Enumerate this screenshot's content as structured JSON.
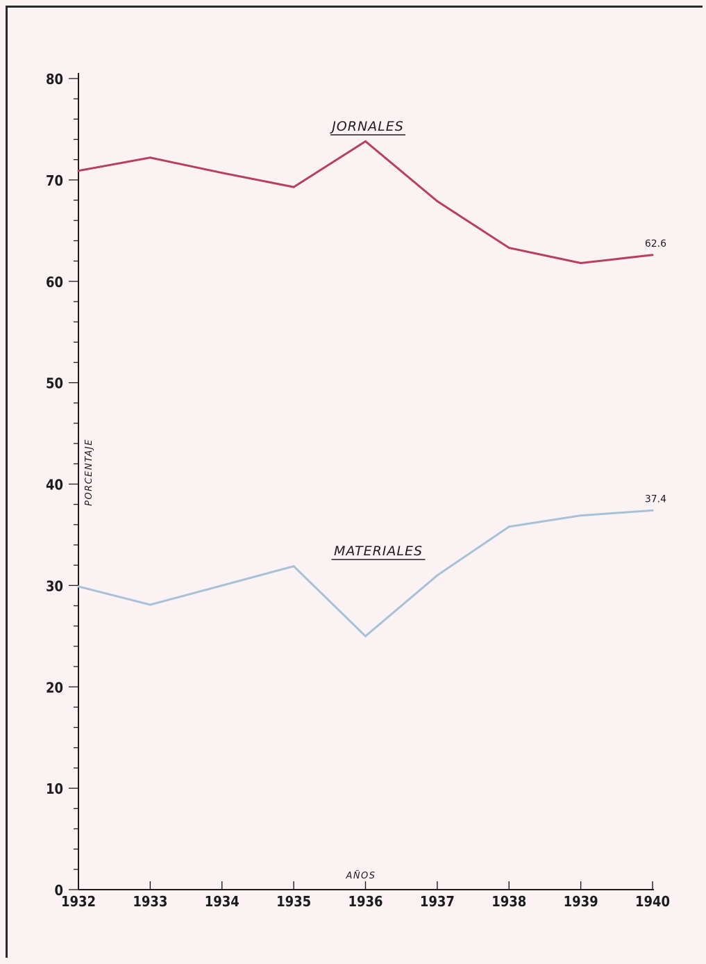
{
  "chart_data": {
    "type": "line",
    "x": [
      "1932",
      "1933",
      "1934",
      "1935",
      "1936",
      "1937",
      "1938",
      "1939",
      "1940"
    ],
    "ylim": [
      0,
      80
    ],
    "yticks": [
      "0",
      "10",
      "20",
      "30",
      "40",
      "50",
      "60",
      "70",
      "80"
    ],
    "xlabel": "AÑOS",
    "ylabel": "PORCENTAJE",
    "series": [
      {
        "name": "JORNALES",
        "color": "#b8405e",
        "values": [
          70.9,
          72.2,
          70.7,
          69.3,
          73.8,
          67.9,
          63.3,
          61.8,
          62.6
        ]
      },
      {
        "name": "MATERIALES",
        "color": "#a7c1d7",
        "values": [
          29.9,
          28.1,
          30.0,
          31.9,
          25.0,
          31.0,
          35.8,
          36.9,
          37.4
        ]
      }
    ],
    "data_labels": [
      {
        "series": 0,
        "index": 8,
        "text": "62.6"
      },
      {
        "series": 1,
        "index": 8,
        "text": "37.4"
      }
    ]
  }
}
